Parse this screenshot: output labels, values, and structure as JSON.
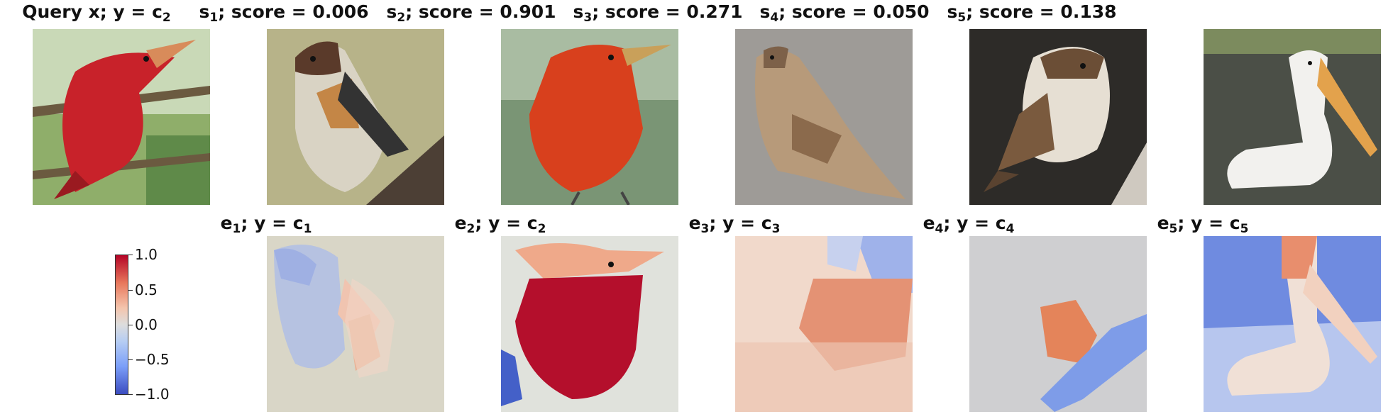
{
  "top_row": [
    {
      "label": "Query x; y = c",
      "sub": "2",
      "suffix": ""
    },
    {
      "label": "s",
      "sub": "1",
      "suffix": "; score = 0.006"
    },
    {
      "label": "s",
      "sub": "2",
      "suffix": "; score = 0.901"
    },
    {
      "label": "s",
      "sub": "3",
      "suffix": "; score = 0.271"
    },
    {
      "label": "s",
      "sub": "4",
      "suffix": "; score = 0.050"
    },
    {
      "label": "s",
      "sub": "5",
      "suffix": "; score = 0.138"
    }
  ],
  "bottom_row": [
    {
      "label": "e",
      "sub": "1",
      "mid": "; y = c",
      "sub2": "1"
    },
    {
      "label": "e",
      "sub": "2",
      "mid": "; y = c",
      "sub2": "2"
    },
    {
      "label": "e",
      "sub": "3",
      "mid": "; y = c",
      "sub2": "3"
    },
    {
      "label": "e",
      "sub": "4",
      "mid": "; y = c",
      "sub2": "4"
    },
    {
      "label": "e",
      "sub": "5",
      "mid": "; y = c",
      "sub2": "5"
    }
  ],
  "colorbar": {
    "ticks": [
      "1.0",
      "0.5",
      "0.0",
      "−0.5",
      "−1.0"
    ],
    "colors": {
      "high": "#b40426",
      "mid": "#dddddd",
      "low": "#3b4cc0"
    }
  },
  "images": [
    "red-bird-query-photo",
    "warbler-photo",
    "red-bird-photo",
    "sparrow-photo",
    "white-throated-sparrow-photo",
    "pelican-photo"
  ],
  "heatmaps": [
    "explanation-map-1",
    "explanation-map-2",
    "explanation-map-3",
    "explanation-map-4",
    "explanation-map-5"
  ]
}
